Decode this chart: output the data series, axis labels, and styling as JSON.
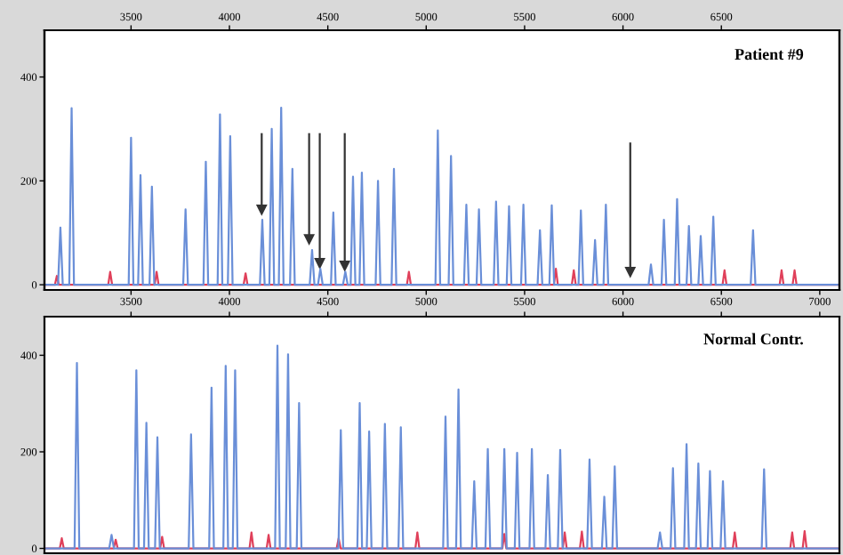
{
  "chart_data": [
    {
      "type": "line",
      "title": "Patient #9",
      "xlim": [
        3060,
        7100
      ],
      "xticks": [
        3500,
        4000,
        4500,
        5000,
        5500,
        6000,
        6500,
        7000
      ],
      "x2lim": [
        3060,
        7100
      ],
      "x2ticks": [
        3500,
        4000,
        4500,
        5000,
        5500,
        6000,
        6500
      ],
      "ylim": [
        -10,
        490
      ],
      "yticks": [
        0,
        200,
        400
      ],
      "grid": false,
      "legend": false,
      "marker": "none",
      "line_style": "solid",
      "series": [
        {
          "color": "#333333",
          "marker": "triangle",
          "x": [
            4164,
            4164
          ],
          "values": [
            290,
            145
          ]
        },
        {
          "color": "#333333",
          "marker": "triangle",
          "x": [
            4405,
            4405
          ],
          "values": [
            290,
            88
          ]
        },
        {
          "color": "#333333",
          "marker": "triangle",
          "x": [
            4459,
            4459
          ],
          "values": [
            290,
            42
          ]
        },
        {
          "color": "#333333",
          "marker": "triangle",
          "x": [
            4586,
            4586
          ],
          "values": [
            290,
            37
          ]
        },
        {
          "color": "#333333",
          "marker": "triangle",
          "x": [
            6037,
            6037
          ],
          "values": [
            272,
            25
          ]
        },
        {
          "color": "#e0405a",
          "x": [
            3070,
            3113,
            3123,
            3133,
            3384,
            3394,
            3404,
            3620,
            3630,
            3640,
            4072,
            4082,
            4092,
            4902,
            4912,
            4922,
            5649,
            5659,
            5669,
            5740,
            5750,
            5760,
            6506,
            6516,
            6526,
            6796,
            6806,
            6816,
            6862,
            6872,
            6882,
            7090
          ],
          "values": [
            0,
            0,
            17,
            0,
            0,
            25,
            0,
            0,
            25,
            0,
            0,
            22,
            0,
            0,
            25,
            0,
            0,
            31,
            0,
            0,
            28,
            0,
            0,
            28,
            0,
            0,
            28,
            0,
            0,
            28,
            0,
            0
          ]
        },
        {
          "color": "#6a8fd8",
          "x": [
            3070,
            3129,
            3141,
            3153,
            3186,
            3198,
            3210,
            3488,
            3500,
            3512,
            3536,
            3548,
            3560,
            3594,
            3606,
            3618,
            3765,
            3777,
            3789,
            3868,
            3880,
            3892,
            3940,
            3952,
            3964,
            3992,
            4004,
            4016,
            4155,
            4167,
            4179,
            4203,
            4215,
            4227,
            4251,
            4263,
            4275,
            4308,
            4320,
            4332,
            4408,
            4420,
            4432,
            4450,
            4462,
            4474,
            4516,
            4528,
            4540,
            4577,
            4589,
            4601,
            4616,
            4628,
            4640,
            4661,
            4673,
            4685,
            4743,
            4755,
            4767,
            4824,
            4836,
            4848,
            5047,
            5059,
            5071,
            5114,
            5126,
            5138,
            5192,
            5204,
            5216,
            5256,
            5268,
            5280,
            5343,
            5355,
            5367,
            5409,
            5421,
            5433,
            5482,
            5494,
            5506,
            5566,
            5578,
            5590,
            5626,
            5638,
            5650,
            5774,
            5786,
            5798,
            5846,
            5858,
            5870,
            5901,
            5913,
            5925,
            6130,
            6142,
            6154,
            6196,
            6208,
            6220,
            6263,
            6275,
            6287,
            6323,
            6335,
            6347,
            6383,
            6395,
            6407,
            6447,
            6459,
            6471,
            6649,
            6661,
            6673,
            7090
          ],
          "values": [
            0,
            0,
            110,
            0,
            0,
            340,
            0,
            0,
            283,
            0,
            0,
            211,
            0,
            0,
            189,
            0,
            0,
            145,
            0,
            0,
            237,
            0,
            0,
            328,
            0,
            0,
            286,
            0,
            0,
            125,
            0,
            0,
            300,
            0,
            0,
            341,
            0,
            0,
            223,
            0,
            0,
            67,
            0,
            0,
            31,
            0,
            0,
            139,
            0,
            0,
            25,
            0,
            0,
            208,
            0,
            0,
            216,
            0,
            0,
            200,
            0,
            0,
            223,
            0,
            0,
            297,
            0,
            0,
            248,
            0,
            0,
            154,
            0,
            0,
            145,
            0,
            0,
            160,
            0,
            0,
            151,
            0,
            0,
            154,
            0,
            0,
            105,
            0,
            0,
            153,
            0,
            0,
            143,
            0,
            0,
            86,
            0,
            0,
            154,
            0,
            0,
            39,
            0,
            0,
            125,
            0,
            0,
            165,
            0,
            0,
            113,
            0,
            0,
            94,
            0,
            0,
            131,
            0,
            0,
            105,
            0,
            0
          ]
        }
      ]
    },
    {
      "type": "line",
      "title": "Normal Contr.",
      "xlim": [
        3060,
        7100
      ],
      "tick_labels": "y",
      "ylim": [
        -10,
        480
      ],
      "yticks": [
        0,
        200,
        400
      ],
      "grid": false,
      "legend": false,
      "marker": "none",
      "line_style": "solid",
      "series": [
        {
          "color": "#e0405a",
          "x": [
            3070,
            3138,
            3148,
            3158,
            3412,
            3422,
            3432,
            3648,
            3658,
            3668,
            4102,
            4112,
            4122,
            4189,
            4199,
            4209,
            4545,
            4555,
            4565,
            4945,
            4955,
            4965,
            5387,
            5397,
            5407,
            5694,
            5704,
            5714,
            5781,
            5791,
            5801,
            6558,
            6568,
            6578,
            6850,
            6860,
            6870,
            6913,
            6923,
            6933,
            7090
          ],
          "values": [
            0,
            0,
            21,
            0,
            0,
            18,
            0,
            0,
            24,
            0,
            0,
            33,
            0,
            0,
            28,
            0,
            0,
            21,
            0,
            0,
            33,
            0,
            0,
            30,
            0,
            0,
            33,
            0,
            0,
            35,
            0,
            0,
            33,
            0,
            0,
            33,
            0,
            0,
            36,
            0,
            0
          ]
        },
        {
          "color": "#6a8fd8",
          "x": [
            3070,
            3213,
            3225,
            3237,
            3389,
            3401,
            3413,
            3515,
            3527,
            3539,
            3566,
            3578,
            3590,
            3622,
            3634,
            3646,
            3793,
            3805,
            3817,
            3897,
            3909,
            3921,
            3969,
            3981,
            3993,
            4017,
            4029,
            4041,
            4232,
            4244,
            4256,
            4286,
            4298,
            4310,
            4342,
            4354,
            4366,
            4554,
            4566,
            4578,
            4650,
            4662,
            4674,
            4698,
            4710,
            4722,
            4778,
            4790,
            4802,
            4859,
            4871,
            4883,
            5086,
            5098,
            5110,
            5152,
            5164,
            5176,
            5232,
            5244,
            5256,
            5301,
            5313,
            5325,
            5385,
            5397,
            5409,
            5450,
            5462,
            5474,
            5525,
            5537,
            5549,
            5606,
            5618,
            5630,
            5669,
            5681,
            5693,
            5818,
            5830,
            5842,
            5893,
            5905,
            5917,
            5946,
            5958,
            5970,
            6176,
            6188,
            6200,
            6242,
            6254,
            6266,
            6311,
            6323,
            6335,
            6371,
            6383,
            6395,
            6430,
            6442,
            6454,
            6496,
            6508,
            6520,
            6705,
            6717,
            6729,
            7090
          ],
          "values": [
            0,
            0,
            384,
            0,
            0,
            28,
            0,
            0,
            369,
            0,
            0,
            260,
            0,
            0,
            230,
            0,
            0,
            236,
            0,
            0,
            333,
            0,
            0,
            378,
            0,
            0,
            369,
            0,
            0,
            420,
            0,
            0,
            402,
            0,
            0,
            301,
            0,
            0,
            245,
            0,
            0,
            301,
            0,
            0,
            242,
            0,
            0,
            258,
            0,
            0,
            251,
            0,
            0,
            273,
            0,
            0,
            329,
            0,
            0,
            139,
            0,
            0,
            206,
            0,
            0,
            206,
            0,
            0,
            198,
            0,
            0,
            206,
            0,
            0,
            152,
            0,
            0,
            204,
            0,
            0,
            184,
            0,
            0,
            107,
            0,
            0,
            170,
            0,
            0,
            33,
            0,
            0,
            166,
            0,
            0,
            216,
            0,
            0,
            176,
            0,
            0,
            160,
            0,
            0,
            139,
            0,
            0,
            164,
            0,
            0
          ]
        }
      ]
    }
  ]
}
